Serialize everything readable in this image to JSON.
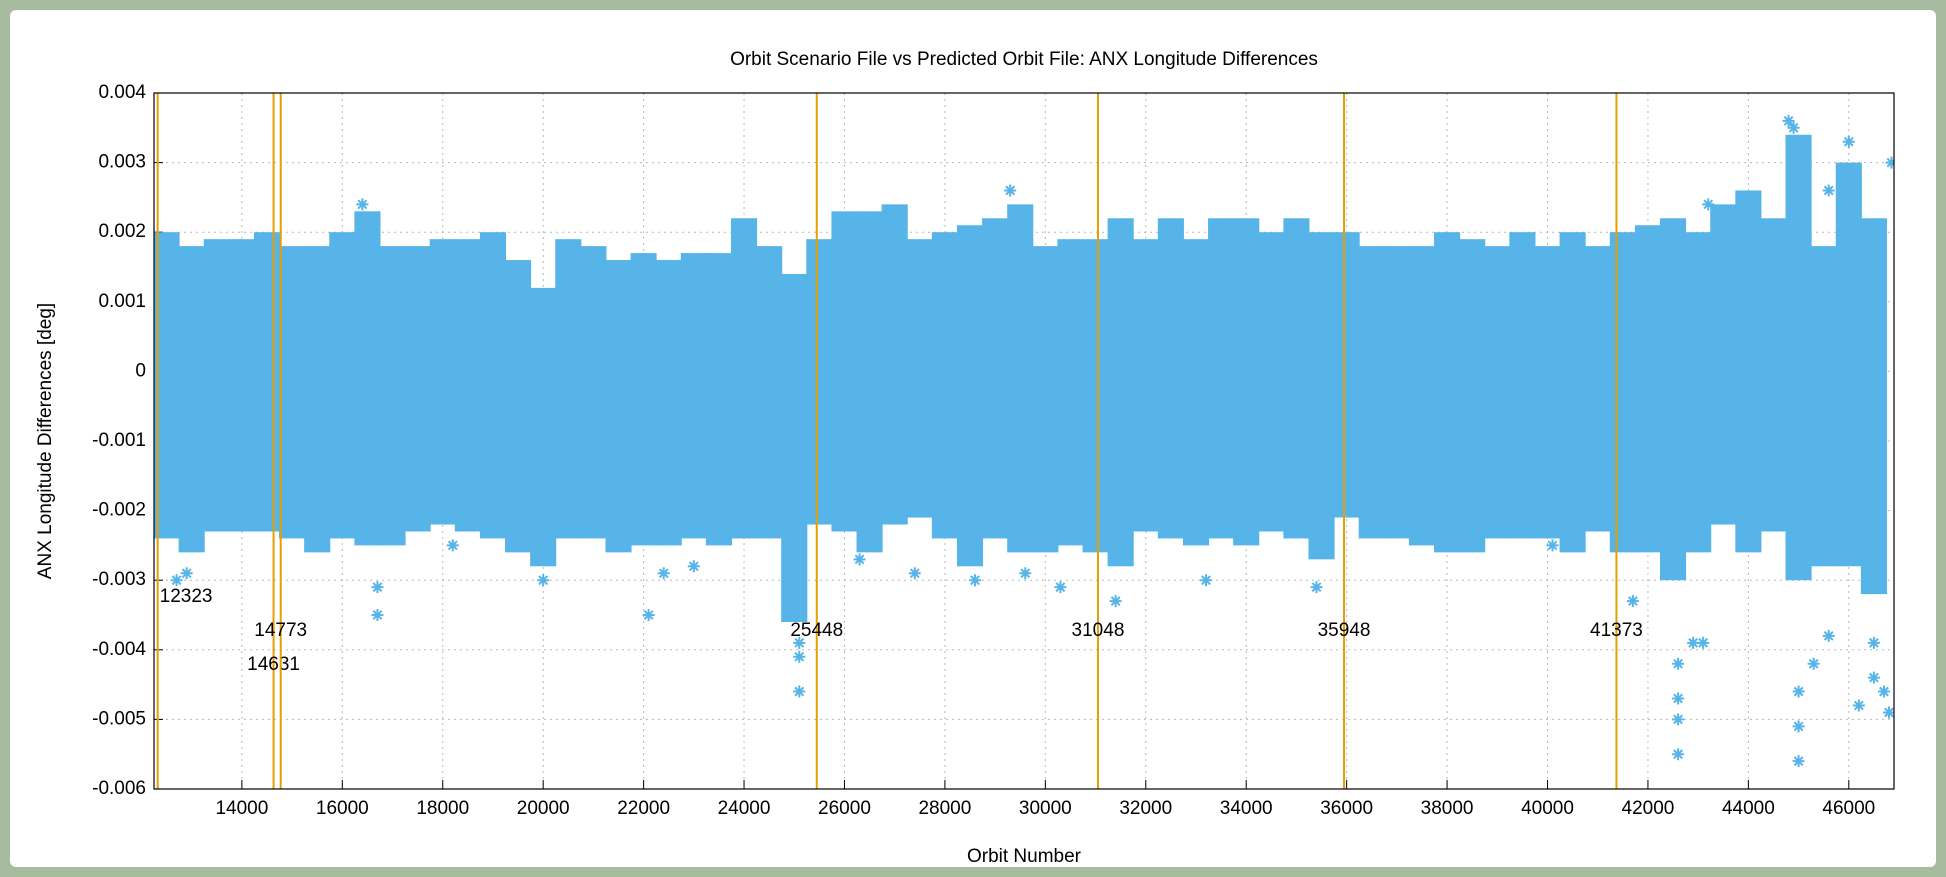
{
  "chart_data": {
    "type": "scatter",
    "title": "Orbit Scenario File vs Predicted Orbit File: ANX Longitude Differences",
    "xlabel": "Orbit Number",
    "ylabel": "ANX Longitude Differences [deg]",
    "xlim": [
      12250,
      46900
    ],
    "ylim": [
      -0.006,
      0.004
    ],
    "xticks": [
      14000,
      16000,
      18000,
      20000,
      22000,
      24000,
      26000,
      28000,
      30000,
      32000,
      34000,
      36000,
      38000,
      40000,
      42000,
      44000,
      46000
    ],
    "yticks": [
      -0.006,
      -0.005,
      -0.004,
      -0.003,
      -0.002,
      -0.001,
      0,
      0.001,
      0.002,
      0.003,
      0.004
    ],
    "grid": true,
    "x": [
      12500,
      13000,
      13500,
      14000,
      14500,
      15000,
      15500,
      16000,
      16500,
      17000,
      17500,
      18000,
      18500,
      19000,
      19500,
      20000,
      20500,
      21000,
      21500,
      22000,
      22500,
      23000,
      23500,
      24000,
      24500,
      25000,
      25500,
      26000,
      26500,
      27000,
      27500,
      28000,
      28500,
      29000,
      29500,
      30000,
      30500,
      31000,
      31500,
      32000,
      32500,
      33000,
      33500,
      34000,
      34500,
      35000,
      35500,
      36000,
      36500,
      37000,
      37500,
      38000,
      38500,
      39000,
      39500,
      40000,
      40500,
      41000,
      41500,
      42000,
      42500,
      43000,
      43500,
      44000,
      44500,
      45000,
      45500,
      46000,
      46500
    ],
    "series": [
      {
        "color": "#56b4e9",
        "values": [
          0.002,
          0.0018,
          0.0019,
          0.0019,
          0.002,
          0.0018,
          0.0018,
          0.002,
          0.0023,
          0.0018,
          0.0018,
          0.0019,
          0.0019,
          0.002,
          0.0016,
          0.0012,
          0.0019,
          0.0018,
          0.0016,
          0.0017,
          0.0016,
          0.0017,
          0.0017,
          0.0022,
          0.0018,
          0.0014,
          0.0019,
          0.0023,
          0.0023,
          0.0024,
          0.0019,
          0.002,
          0.0021,
          0.0022,
          0.0024,
          0.0018,
          0.0019,
          0.0019,
          0.0022,
          0.0019,
          0.0022,
          0.0019,
          0.0022,
          0.0022,
          0.002,
          0.0022,
          0.002,
          0.002,
          0.0018,
          0.0018,
          0.0018,
          0.002,
          0.0019,
          0.0018,
          0.002,
          0.0018,
          0.002,
          0.0018,
          0.002,
          0.0021,
          0.0022,
          0.002,
          0.0024,
          0.0026,
          0.0022,
          0.0034,
          0.0018,
          0.003,
          0.0022
        ]
      },
      {
        "color": "#56b4e9",
        "values": [
          -0.0024,
          -0.0026,
          -0.0023,
          -0.0023,
          -0.0023,
          -0.0024,
          -0.0026,
          -0.0024,
          -0.0025,
          -0.0025,
          -0.0023,
          -0.0022,
          -0.0023,
          -0.0024,
          -0.0026,
          -0.0028,
          -0.0024,
          -0.0024,
          -0.0026,
          -0.0025,
          -0.0025,
          -0.0024,
          -0.0025,
          -0.0024,
          -0.0024,
          -0.0036,
          -0.0022,
          -0.0023,
          -0.0026,
          -0.0022,
          -0.0021,
          -0.0024,
          -0.0028,
          -0.0024,
          -0.0026,
          -0.0026,
          -0.0025,
          -0.0026,
          -0.0028,
          -0.0023,
          -0.0024,
          -0.0025,
          -0.0024,
          -0.0025,
          -0.0023,
          -0.0024,
          -0.0027,
          -0.0021,
          -0.0024,
          -0.0024,
          -0.0025,
          -0.0026,
          -0.0026,
          -0.0024,
          -0.0024,
          -0.0024,
          -0.0026,
          -0.0023,
          -0.0026,
          -0.0026,
          -0.003,
          -0.0026,
          -0.0022,
          -0.0026,
          -0.0023,
          -0.003,
          -0.0028,
          -0.0028,
          -0.0032
        ]
      },
      {
        "color": "#56b4e9",
        "x": [
          12700,
          12900,
          16700,
          16700,
          18200,
          20000,
          22100,
          22400,
          23000,
          25100,
          25100,
          25100,
          26300,
          27400,
          28600,
          29600,
          30300,
          31400,
          33200,
          35400,
          40100,
          41700,
          42600,
          42600,
          42600,
          42600,
          42900,
          43100,
          45000,
          45000,
          45000,
          45300,
          45600,
          46200,
          46500,
          46500,
          46800,
          46700,
          44800,
          44900,
          46000,
          45600,
          46850,
          29300,
          16400,
          43200
        ],
        "values": [
          -0.003,
          -0.0029,
          -0.0035,
          -0.0031,
          -0.0025,
          -0.003,
          -0.0035,
          -0.0029,
          -0.0028,
          -0.0046,
          -0.0041,
          -0.0039,
          -0.0027,
          -0.0029,
          -0.003,
          -0.0029,
          -0.0031,
          -0.0033,
          -0.003,
          -0.0031,
          -0.0025,
          -0.0033,
          -0.0055,
          -0.005,
          -0.0047,
          -0.0042,
          -0.0039,
          -0.0039,
          -0.0056,
          -0.0051,
          -0.0046,
          -0.0042,
          -0.0038,
          -0.0048,
          -0.0044,
          -0.0039,
          -0.0049,
          -0.0046,
          0.0036,
          0.0035,
          0.0033,
          0.0026,
          0.003,
          0.0026,
          0.0024,
          0.0024
        ]
      }
    ],
    "vlines": [
      12323,
      14631,
      14773,
      25448,
      31048,
      35948,
      41373
    ],
    "vline_color": "#e69f00"
  }
}
